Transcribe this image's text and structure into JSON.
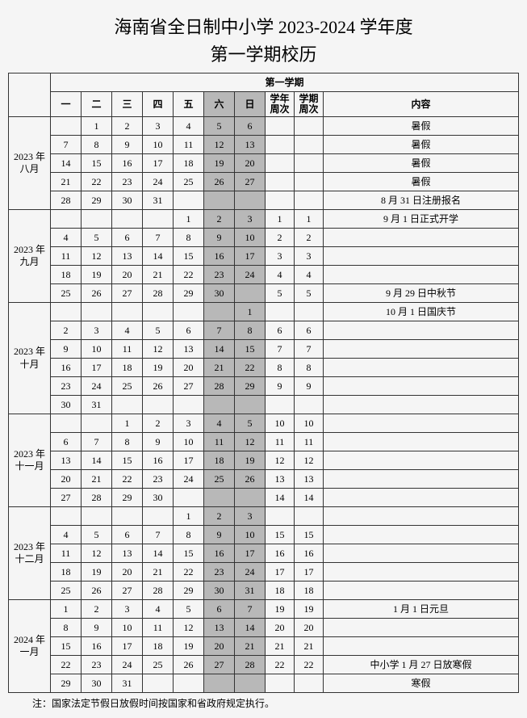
{
  "title_line1": "海南省全日制中小学 2023-2024 学年度",
  "title_line2": "第一学期校历",
  "semester_header": "第一学期",
  "weekday_headers": [
    "一",
    "二",
    "三",
    "四",
    "五",
    "六",
    "日"
  ],
  "week_header_year": "学年周次",
  "week_header_sem": "学期周次",
  "content_header": "内容",
  "note": "注：国家法定节假日放假时间按国家和省政府规定执行。",
  "months": [
    {
      "label": "2023 年\n八月",
      "weeks": [
        {
          "d": [
            "",
            "1",
            "2",
            "3",
            "4",
            "5",
            "6"
          ],
          "wy": "",
          "ws": "",
          "c": "暑假"
        },
        {
          "d": [
            "7",
            "8",
            "9",
            "10",
            "11",
            "12",
            "13"
          ],
          "wy": "",
          "ws": "",
          "c": "暑假"
        },
        {
          "d": [
            "14",
            "15",
            "16",
            "17",
            "18",
            "19",
            "20"
          ],
          "wy": "",
          "ws": "",
          "c": "暑假"
        },
        {
          "d": [
            "21",
            "22",
            "23",
            "24",
            "25",
            "26",
            "27"
          ],
          "wy": "",
          "ws": "",
          "c": "暑假"
        },
        {
          "d": [
            "28",
            "29",
            "30",
            "31",
            "",
            "",
            ""
          ],
          "wy": "",
          "ws": "",
          "c": "8 月 31 日注册报名"
        }
      ]
    },
    {
      "label": "2023 年\n九月",
      "weeks": [
        {
          "d": [
            "",
            "",
            "",
            "",
            "1",
            "2",
            "3"
          ],
          "wy": "1",
          "ws": "1",
          "c": "9 月 1 日正式开学"
        },
        {
          "d": [
            "4",
            "5",
            "6",
            "7",
            "8",
            "9",
            "10"
          ],
          "wy": "2",
          "ws": "2",
          "c": ""
        },
        {
          "d": [
            "11",
            "12",
            "13",
            "14",
            "15",
            "16",
            "17"
          ],
          "wy": "3",
          "ws": "3",
          "c": ""
        },
        {
          "d": [
            "18",
            "19",
            "20",
            "21",
            "22",
            "23",
            "24"
          ],
          "wy": "4",
          "ws": "4",
          "c": ""
        },
        {
          "d": [
            "25",
            "26",
            "27",
            "28",
            "29",
            "30",
            ""
          ],
          "wy": "5",
          "ws": "5",
          "c": "9 月 29 日中秋节"
        }
      ]
    },
    {
      "label": "2023 年\n十月",
      "weeks": [
        {
          "d": [
            "",
            "",
            "",
            "",
            "",
            "",
            "1"
          ],
          "wy": "",
          "ws": "",
          "c": "10 月 1 日国庆节"
        },
        {
          "d": [
            "2",
            "3",
            "4",
            "5",
            "6",
            "7",
            "8"
          ],
          "wy": "6",
          "ws": "6",
          "c": ""
        },
        {
          "d": [
            "9",
            "10",
            "11",
            "12",
            "13",
            "14",
            "15"
          ],
          "wy": "7",
          "ws": "7",
          "c": ""
        },
        {
          "d": [
            "16",
            "17",
            "18",
            "19",
            "20",
            "21",
            "22"
          ],
          "wy": "8",
          "ws": "8",
          "c": ""
        },
        {
          "d": [
            "23",
            "24",
            "25",
            "26",
            "27",
            "28",
            "29"
          ],
          "wy": "9",
          "ws": "9",
          "c": ""
        },
        {
          "d": [
            "30",
            "31",
            "",
            "",
            "",
            "",
            ""
          ],
          "wy": "",
          "ws": "",
          "c": ""
        }
      ]
    },
    {
      "label": "2023 年\n十一月",
      "weeks": [
        {
          "d": [
            "",
            "",
            "1",
            "2",
            "3",
            "4",
            "5"
          ],
          "wy": "10",
          "ws": "10",
          "c": ""
        },
        {
          "d": [
            "6",
            "7",
            "8",
            "9",
            "10",
            "11",
            "12"
          ],
          "wy": "11",
          "ws": "11",
          "c": ""
        },
        {
          "d": [
            "13",
            "14",
            "15",
            "16",
            "17",
            "18",
            "19"
          ],
          "wy": "12",
          "ws": "12",
          "c": ""
        },
        {
          "d": [
            "20",
            "21",
            "22",
            "23",
            "24",
            "25",
            "26"
          ],
          "wy": "13",
          "ws": "13",
          "c": ""
        },
        {
          "d": [
            "27",
            "28",
            "29",
            "30",
            "",
            "",
            ""
          ],
          "wy": "14",
          "ws": "14",
          "c": ""
        }
      ]
    },
    {
      "label": "2023 年\n十二月",
      "weeks": [
        {
          "d": [
            "",
            "",
            "",
            "",
            "1",
            "2",
            "3"
          ],
          "wy": "",
          "ws": "",
          "c": ""
        },
        {
          "d": [
            "4",
            "5",
            "6",
            "7",
            "8",
            "9",
            "10"
          ],
          "wy": "15",
          "ws": "15",
          "c": ""
        },
        {
          "d": [
            "11",
            "12",
            "13",
            "14",
            "15",
            "16",
            "17"
          ],
          "wy": "16",
          "ws": "16",
          "c": ""
        },
        {
          "d": [
            "18",
            "19",
            "20",
            "21",
            "22",
            "23",
            "24"
          ],
          "wy": "17",
          "ws": "17",
          "c": ""
        },
        {
          "d": [
            "25",
            "26",
            "27",
            "28",
            "29",
            "30",
            "31"
          ],
          "wy": "18",
          "ws": "18",
          "c": ""
        }
      ]
    },
    {
      "label": "2024 年\n一月",
      "weeks": [
        {
          "d": [
            "1",
            "2",
            "3",
            "4",
            "5",
            "6",
            "7"
          ],
          "wy": "19",
          "ws": "19",
          "c": "1 月 1 日元旦"
        },
        {
          "d": [
            "8",
            "9",
            "10",
            "11",
            "12",
            "13",
            "14"
          ],
          "wy": "20",
          "ws": "20",
          "c": ""
        },
        {
          "d": [
            "15",
            "16",
            "17",
            "18",
            "19",
            "20",
            "21"
          ],
          "wy": "21",
          "ws": "21",
          "c": ""
        },
        {
          "d": [
            "22",
            "23",
            "24",
            "25",
            "26",
            "27",
            "28"
          ],
          "wy": "22",
          "ws": "22",
          "c": "中小学 1 月 27 日放寒假"
        },
        {
          "d": [
            "29",
            "30",
            "31",
            "",
            "",
            "",
            ""
          ],
          "wy": "",
          "ws": "",
          "c": "寒假"
        }
      ]
    }
  ]
}
